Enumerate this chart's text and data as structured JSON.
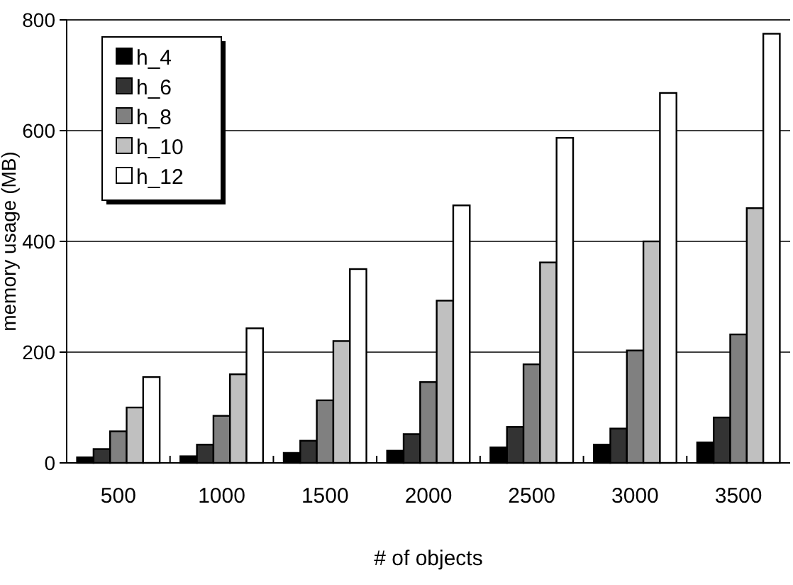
{
  "chart_data": {
    "type": "bar",
    "xlabel": "# of objects",
    "ylabel": "memory usage (MB)",
    "categories": [
      "500",
      "1000",
      "1500",
      "2000",
      "2500",
      "3000",
      "3500"
    ],
    "series": [
      {
        "name": "h_4",
        "color": "#000000",
        "values": [
          10,
          12,
          18,
          22,
          28,
          33,
          37
        ]
      },
      {
        "name": "h_6",
        "color": "#333333",
        "values": [
          25,
          33,
          40,
          52,
          65,
          62,
          82
        ]
      },
      {
        "name": "h_8",
        "color": "#808080",
        "values": [
          57,
          85,
          113,
          146,
          178,
          203,
          232
        ]
      },
      {
        "name": "h_10",
        "color": "#c0c0c0",
        "values": [
          100,
          160,
          220,
          293,
          362,
          400,
          460
        ]
      },
      {
        "name": "h_12",
        "color": "#ffffff",
        "values": [
          155,
          243,
          350,
          465,
          587,
          668,
          775
        ]
      }
    ],
    "ylim": [
      0,
      800
    ],
    "yticks": [
      0,
      200,
      400,
      600,
      800
    ],
    "grid": "y",
    "legend": "top left"
  }
}
